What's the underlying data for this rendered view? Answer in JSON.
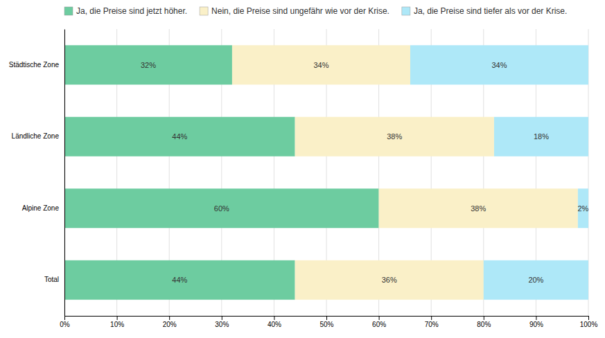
{
  "chart_data": {
    "type": "bar",
    "orientation": "horizontal",
    "stacked": true,
    "categories": [
      "Städtische Zone",
      "Ländliche Zone",
      "Alpine Zone",
      "Total"
    ],
    "series": [
      {
        "name": "Ja, die Preise sind jetzt höher.",
        "color": "#6dcca0",
        "values": [
          32,
          44,
          60,
          44
        ],
        "value_labels": [
          "32%",
          "44%",
          "60%",
          "44%"
        ]
      },
      {
        "name": "Nein, die Preise sind ungefähr wie vor der Krise.",
        "color": "#faf0c8",
        "values": [
          34,
          38,
          38,
          36
        ],
        "value_labels": [
          "34%",
          "38%",
          "38%",
          "36%"
        ]
      },
      {
        "name": "Ja, die Preise sind tiefer als vor der Krise.",
        "color": "#aee8f8",
        "values": [
          34,
          18,
          2,
          20
        ],
        "value_labels": [
          "34%",
          "18%",
          "2%",
          "20%"
        ]
      }
    ],
    "xlim": [
      0,
      100
    ],
    "xticks": [
      {
        "value": 0,
        "label": "0%"
      },
      {
        "value": 10,
        "label": "10%"
      },
      {
        "value": 20,
        "label": "20%"
      },
      {
        "value": 30,
        "label": "30%"
      },
      {
        "value": 40,
        "label": "40%"
      },
      {
        "value": 50,
        "label": "50%"
      },
      {
        "value": 60,
        "label": "60%"
      },
      {
        "value": 70,
        "label": "70%"
      },
      {
        "value": 80,
        "label": "80%"
      },
      {
        "value": 90,
        "label": "90%"
      },
      {
        "value": 100,
        "label": "100%"
      }
    ],
    "grid": true,
    "legend": "top",
    "data_labels": true
  }
}
